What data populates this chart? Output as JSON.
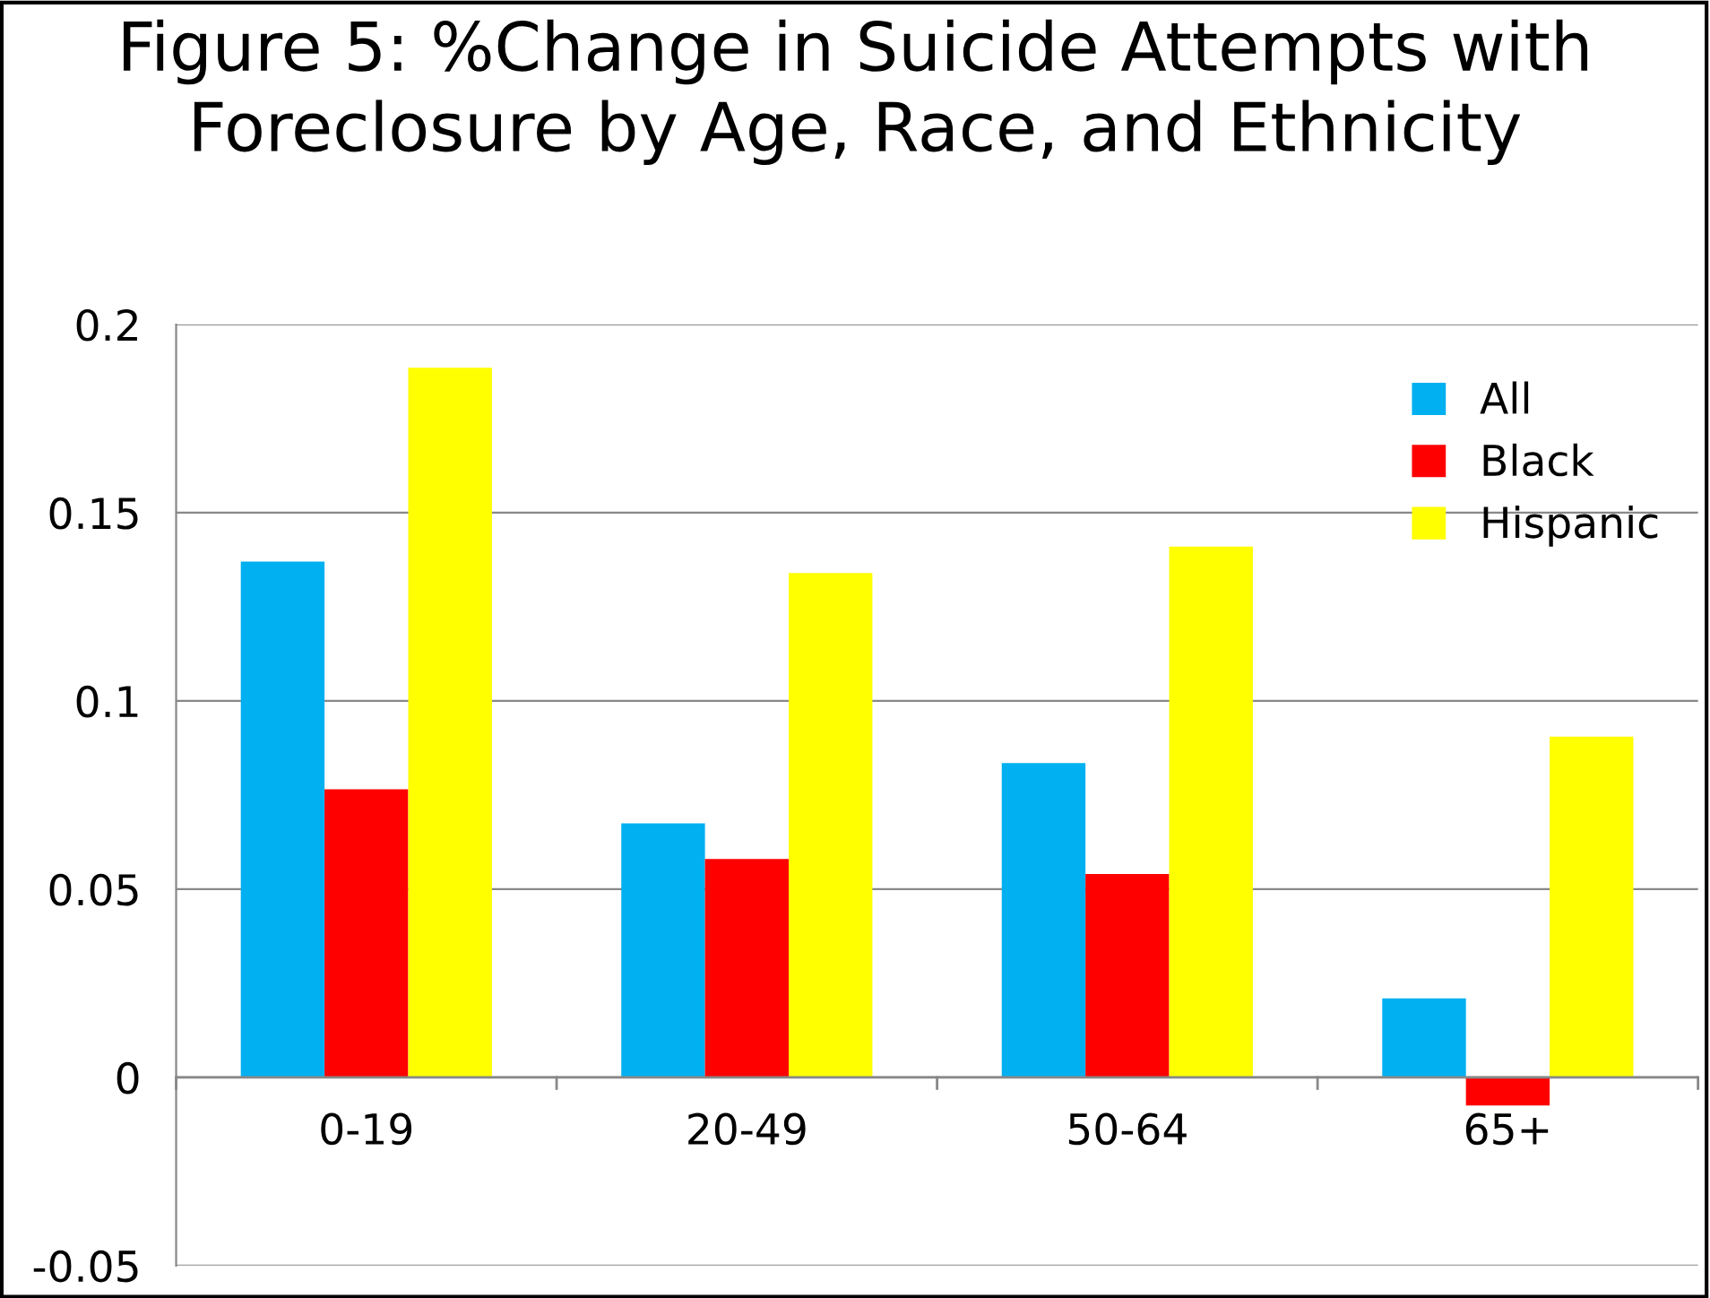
{
  "chart_data": {
    "type": "bar",
    "title": "Figure 5: %Change in Suicide Attempts with\nForeclosure by Age, Race, and Ethnicity",
    "categories": [
      "0-19",
      "20-49",
      "50-64",
      "65+"
    ],
    "series": [
      {
        "name": "All",
        "color": "#00b0f0",
        "values": [
          0.137,
          0.0675,
          0.0835,
          0.021
        ]
      },
      {
        "name": "Black",
        "color": "#ff0000",
        "values": [
          0.0765,
          0.058,
          0.054,
          -0.0075
        ]
      },
      {
        "name": "Hispanic",
        "color": "#ffff00",
        "values": [
          0.1885,
          0.134,
          0.141,
          0.0905
        ]
      }
    ],
    "ylim": [
      -0.05,
      0.2
    ],
    "yticks": [
      {
        "value": -0.05,
        "label": "-0.05"
      },
      0,
      0.05,
      0.1,
      0.15,
      0.2
    ],
    "grid": "y",
    "legend": "top right"
  }
}
